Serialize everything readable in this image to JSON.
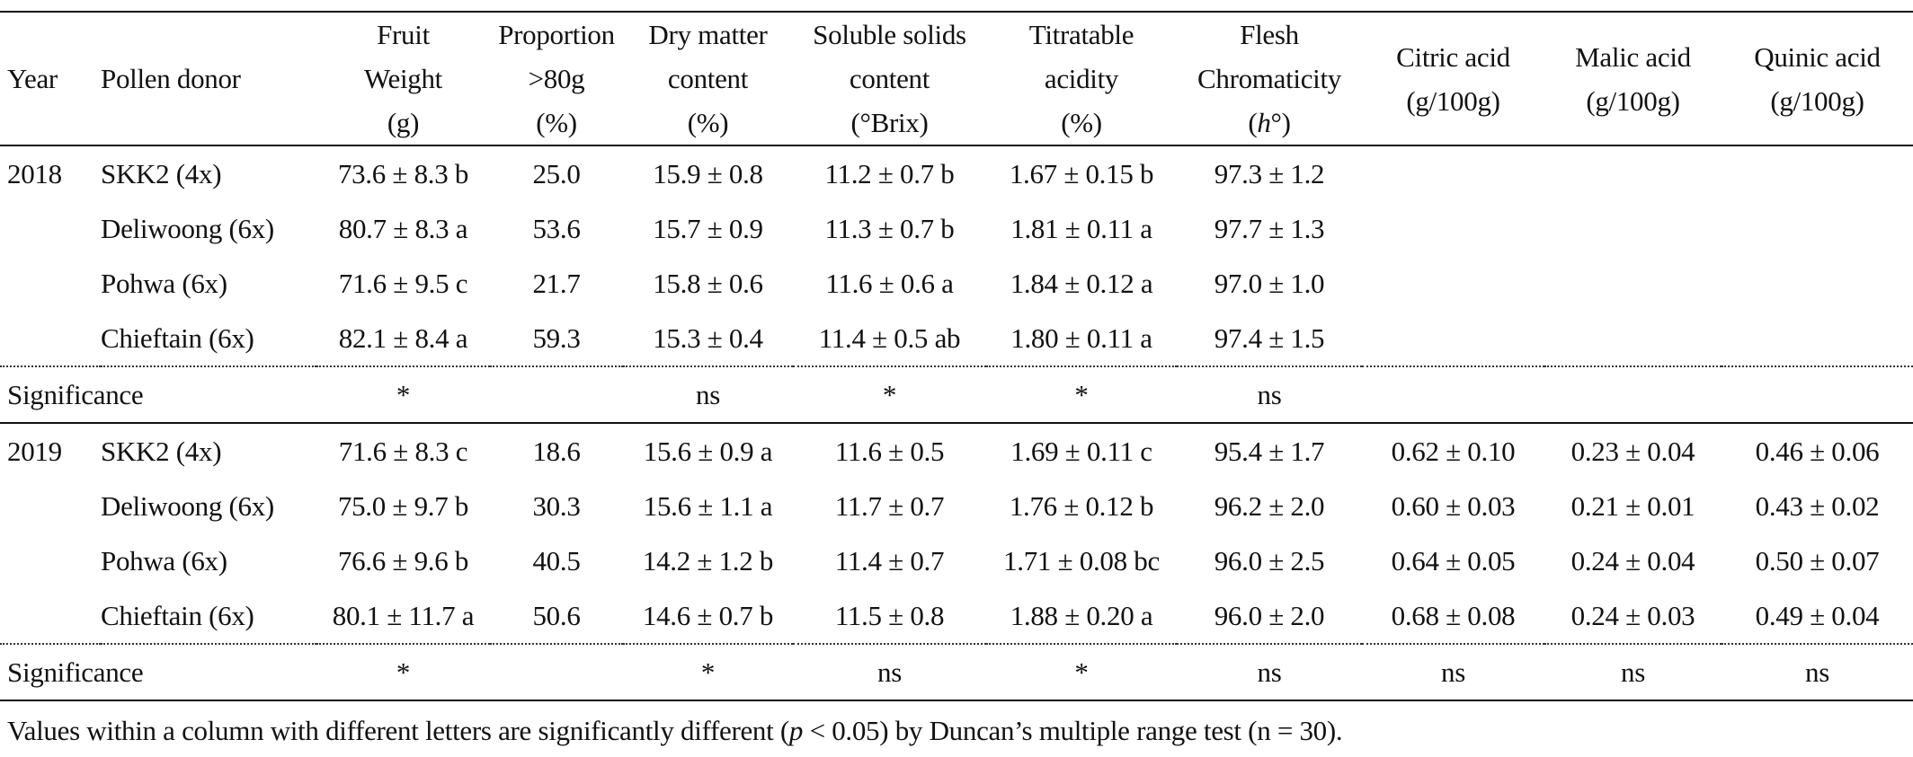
{
  "table": {
    "headers": [
      {
        "lines": [
          "Year"
        ]
      },
      {
        "lines": [
          "Pollen donor"
        ]
      },
      {
        "lines": [
          "Fruit",
          "Weight",
          "(g)"
        ]
      },
      {
        "lines": [
          "Proportion",
          ">80g",
          "(%)"
        ]
      },
      {
        "lines": [
          "Dry matter",
          "content",
          "(%)"
        ]
      },
      {
        "lines": [
          "Soluble solids",
          "content",
          "(°Brix)"
        ]
      },
      {
        "lines": [
          "Titratable",
          "acidity",
          "(%)"
        ]
      },
      {
        "lines": [
          "Flesh",
          "Chromaticity"
        ],
        "italic_line_pre": "(",
        "italic_line_var": "h",
        "italic_line_post": "°)"
      },
      {
        "lines": [
          "Citric acid",
          "(g/100g)"
        ]
      },
      {
        "lines": [
          "Malic acid",
          "(g/100g)"
        ]
      },
      {
        "lines": [
          "Quinic acid",
          "(g/100g)"
        ]
      }
    ],
    "groups": [
      {
        "year": "2018",
        "rows": [
          [
            "SKK2 (4x)",
            "73.6 ± 8.3 b",
            "25.0",
            "15.9 ± 0.8",
            "11.2 ± 0.7 b",
            "1.67 ± 0.15 b",
            "97.3 ± 1.2",
            "",
            "",
            ""
          ],
          [
            "Deliwoong (6x)",
            "80.7 ± 8.3 a",
            "53.6",
            "15.7 ± 0.9",
            "11.3 ± 0.7 b",
            "1.81 ± 0.11 a",
            "97.7 ± 1.3",
            "",
            "",
            ""
          ],
          [
            "Pohwa (6x)",
            "71.6 ± 9.5 c",
            "21.7",
            "15.8 ± 0.6",
            "11.6 ± 0.6 a",
            "1.84 ± 0.12 a",
            "97.0 ± 1.0",
            "",
            "",
            ""
          ],
          [
            "Chieftain (6x)",
            "82.1 ± 8.4 a",
            "59.3",
            "15.3 ± 0.4",
            "11.4 ± 0.5 ab",
            "1.80 ± 0.11 a",
            "97.4 ± 1.5",
            "",
            "",
            ""
          ]
        ],
        "significance_label": "Significance",
        "significance": [
          "*",
          "",
          "ns",
          "*",
          "*",
          "ns",
          "",
          "",
          ""
        ]
      },
      {
        "year": "2019",
        "rows": [
          [
            "SKK2 (4x)",
            "71.6 ± 8.3 c",
            "18.6",
            "15.6 ± 0.9 a",
            "11.6 ± 0.5",
            "1.69 ± 0.11 c",
            "95.4 ± 1.7",
            "0.62 ± 0.10",
            "0.23 ± 0.04",
            "0.46 ± 0.06"
          ],
          [
            "Deliwoong (6x)",
            "75.0 ± 9.7 b",
            "30.3",
            "15.6 ± 1.1 a",
            "11.7 ± 0.7",
            "1.76 ± 0.12 b",
            "96.2 ± 2.0",
            "0.60 ± 0.03",
            "0.21 ± 0.01",
            "0.43 ± 0.02"
          ],
          [
            "Pohwa (6x)",
            "76.6 ± 9.6 b",
            "40.5",
            "14.2 ± 1.2 b",
            "11.4 ± 0.7",
            "1.71 ± 0.08 bc",
            "96.0 ± 2.5",
            "0.64 ± 0.05",
            "0.24 ± 0.04",
            "0.50 ± 0.07"
          ],
          [
            "Chieftain (6x)",
            "80.1 ± 11.7 a",
            "50.6",
            "14.6 ± 0.7 b",
            "11.5 ± 0.8",
            "1.88 ± 0.20 a",
            "96.0 ± 2.0",
            "0.68 ± 0.08",
            "0.24 ± 0.03",
            "0.49 ± 0.04"
          ]
        ],
        "significance_label": "Significance",
        "significance": [
          "*",
          "",
          "*",
          "ns",
          "*",
          "ns",
          "ns",
          "ns",
          "ns"
        ]
      }
    ]
  },
  "footnote": {
    "pre": "Values within a column with different letters are significantly different (",
    "var": "p",
    "post": " < 0.05) by Duncan’s multiple range test (n = 30)."
  }
}
